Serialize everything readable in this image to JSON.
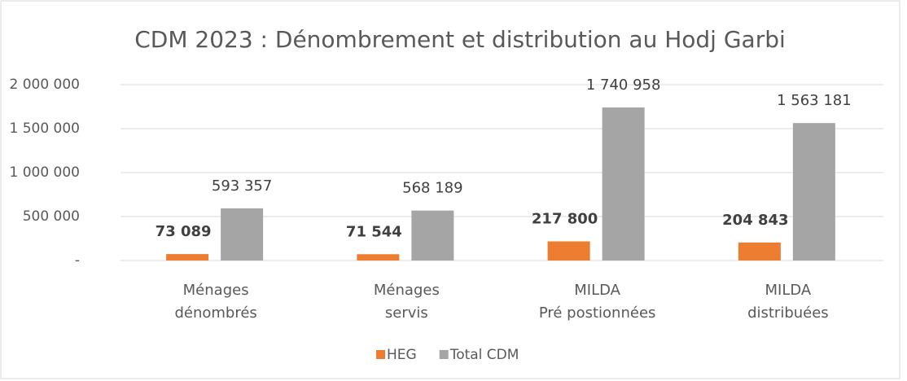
{
  "chart_data": {
    "type": "bar",
    "title": "CDM 2023 : Dénombrement  et distribution au Hodj Garbi",
    "categories": [
      [
        "Ménages",
        "dénombrés"
      ],
      [
        "Ménages",
        "servis"
      ],
      [
        "MILDA",
        "Pré postionnées"
      ],
      [
        "MILDA",
        "distribuées"
      ]
    ],
    "series": [
      {
        "name": "HEG",
        "color": "#ed7d31",
        "values": [
          73089,
          71544,
          217800,
          204843
        ],
        "value_labels": [
          "73 089",
          "71 544",
          "217 800",
          "204 843"
        ]
      },
      {
        "name": "Total CDM",
        "color": "#a5a5a5",
        "values": [
          593357,
          568189,
          1740958,
          1563181
        ],
        "value_labels": [
          "593  357",
          "568  189",
          "1 740  958",
          "1 563  181"
        ]
      }
    ],
    "ylim": [
      0,
      2000000
    ],
    "yticks": [
      {
        "value": 0,
        "label": "-"
      },
      {
        "value": 500000,
        "label": "500 000"
      },
      {
        "value": 1000000,
        "label": "1 000 000"
      },
      {
        "value": 1500000,
        "label": "1 500 000"
      },
      {
        "value": 2000000,
        "label": "2 000 000"
      }
    ],
    "grid": true,
    "legend": "bottom"
  }
}
